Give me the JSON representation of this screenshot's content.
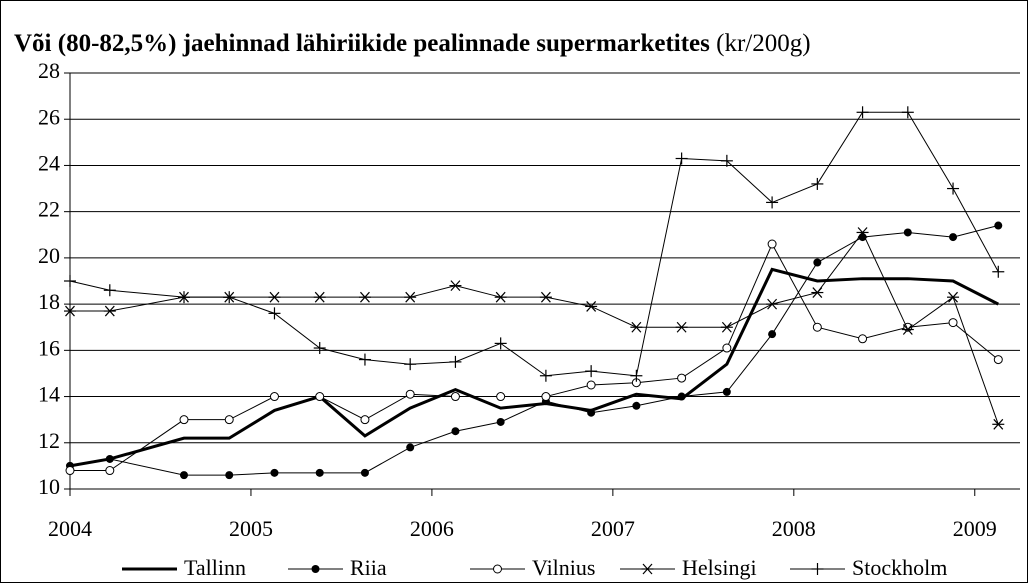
{
  "chart_data": {
    "type": "line",
    "title": "Või (80-82,5%) jaehinnad lähiriikide pealinnade supermarketites",
    "subtitle": "(kr/200g)",
    "x": [
      2004.0,
      2004.22,
      2004.63,
      2004.88,
      2005.13,
      2005.38,
      2005.63,
      2005.88,
      2006.13,
      2006.38,
      2006.63,
      2006.88,
      2007.13,
      2007.38,
      2007.63,
      2007.88,
      2008.13,
      2008.38,
      2008.63,
      2008.88,
      2009.13
    ],
    "series": [
      {
        "name": "Tallinn",
        "color": "#000000",
        "marker": "none",
        "width": 3,
        "values": [
          11.0,
          11.3,
          12.2,
          12.2,
          13.4,
          14.0,
          12.3,
          13.5,
          14.3,
          13.5,
          13.7,
          13.4,
          14.1,
          13.9,
          15.4,
          19.5,
          19.0,
          19.1,
          19.1,
          19.0,
          18.0
        ]
      },
      {
        "name": "Riia",
        "color": "#000000",
        "marker": "dot",
        "width": 1,
        "values": [
          11.0,
          11.3,
          10.6,
          10.6,
          10.7,
          10.7,
          10.7,
          11.8,
          12.5,
          12.9,
          13.8,
          13.3,
          13.6,
          14.0,
          14.2,
          16.7,
          19.8,
          20.9,
          21.1,
          20.9,
          21.4
        ]
      },
      {
        "name": "Vilnius",
        "color": "#000000",
        "marker": "circle",
        "width": 1,
        "values": [
          10.8,
          10.8,
          13.0,
          13.0,
          14.0,
          14.0,
          13.0,
          14.1,
          14.0,
          14.0,
          14.0,
          14.5,
          14.6,
          14.8,
          16.1,
          20.6,
          17.0,
          16.5,
          17.0,
          17.2,
          15.6
        ]
      },
      {
        "name": "Helsingi",
        "color": "#000000",
        "marker": "asterisk",
        "width": 1,
        "values": [
          17.7,
          17.7,
          18.3,
          18.3,
          18.3,
          18.3,
          18.3,
          18.3,
          18.8,
          18.3,
          18.3,
          17.9,
          17.0,
          17.0,
          17.0,
          18.0,
          18.5,
          21.1,
          16.9,
          18.3,
          12.8
        ]
      },
      {
        "name": "Stockholm",
        "color": "#000000",
        "marker": "plus",
        "width": 1,
        "values": [
          19.0,
          18.6,
          18.3,
          18.3,
          17.6,
          16.1,
          15.6,
          15.4,
          15.5,
          16.3,
          14.9,
          15.1,
          14.9,
          24.3,
          24.2,
          22.4,
          23.2,
          26.3,
          26.3,
          23.0,
          19.4
        ]
      }
    ],
    "xlim": [
      2004,
      2009.25
    ],
    "xticks": [
      2004,
      2005,
      2006,
      2007,
      2008,
      2009
    ],
    "ylim": [
      10,
      28
    ],
    "yticks": [
      10,
      12,
      14,
      16,
      18,
      20,
      22,
      24,
      26,
      28
    ],
    "grid": true,
    "legend": "bottom"
  }
}
